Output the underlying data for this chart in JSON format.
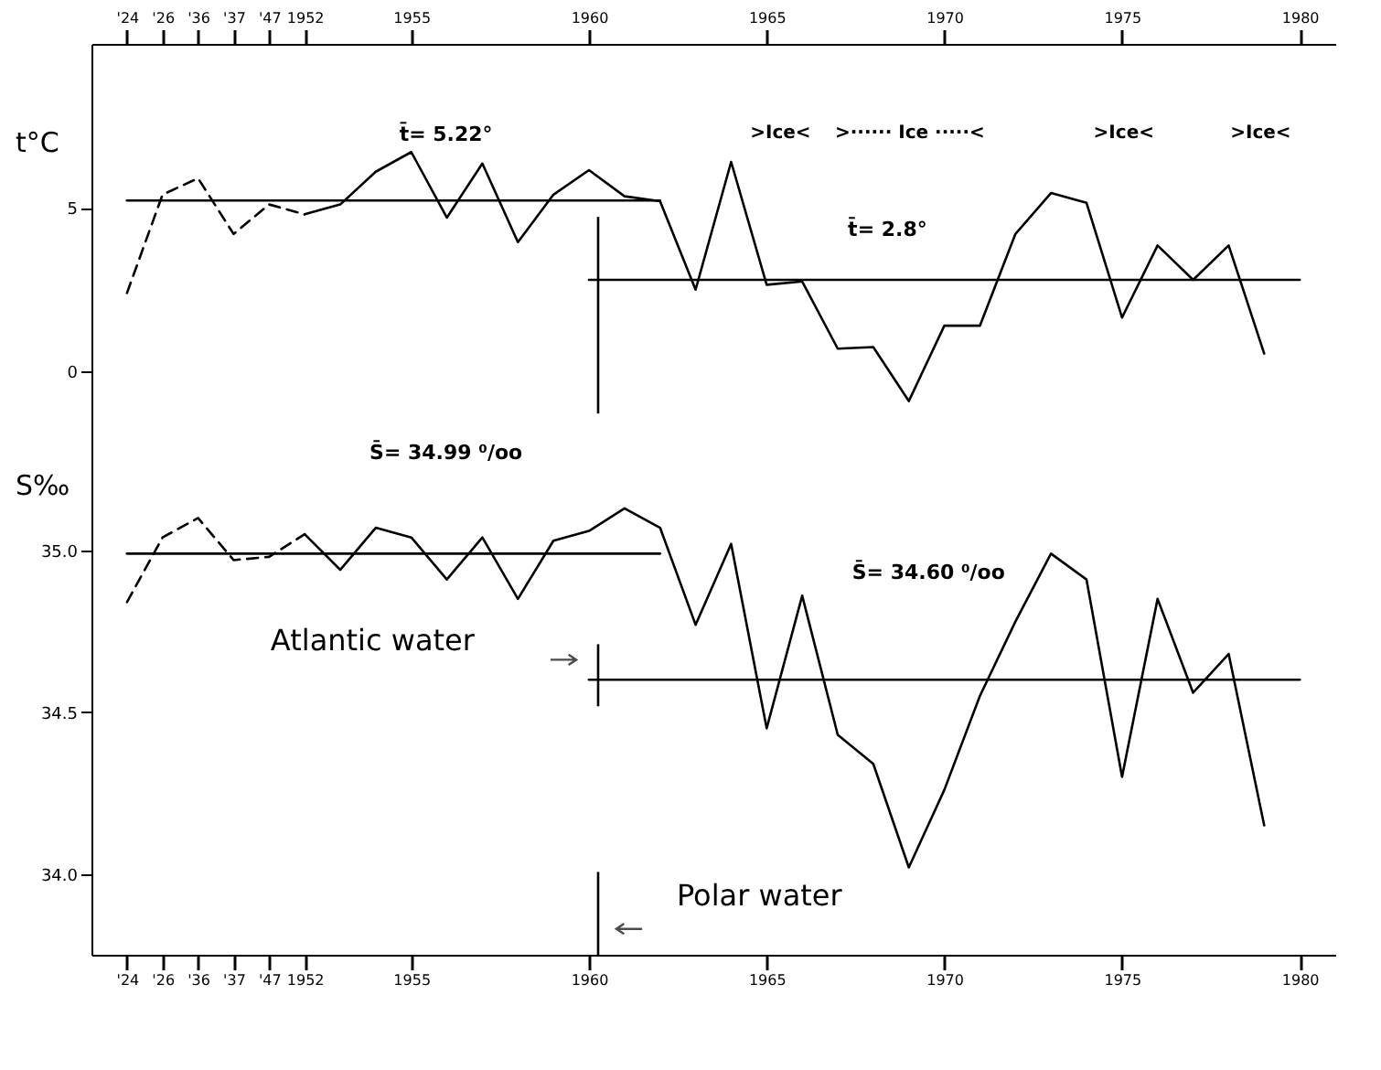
{
  "chart_data": [
    {
      "type": "line",
      "ylabel": "t°C",
      "categories": [
        "'24",
        "'26",
        "'36",
        "'37",
        "'47",
        "1952",
        null,
        null,
        "1955",
        null,
        null,
        null,
        null,
        "1960",
        null,
        null,
        null,
        null,
        "1965",
        null,
        null,
        null,
        null,
        "1970",
        null,
        null,
        null,
        null,
        "1975",
        null,
        null,
        null,
        null,
        "1980"
      ],
      "ylim": [
        -2,
        10
      ],
      "yticks": [
        0,
        5
      ],
      "grid": false,
      "marker": "none",
      "series": [
        {
          "color": "#000000",
          "line_style": "dashed",
          "values": [
            2.4,
            5.4,
            5.9,
            4.2,
            5.1,
            4.8,
            null,
            null,
            null,
            null,
            null,
            null,
            null,
            null,
            null,
            null,
            null,
            null,
            null,
            null,
            null,
            null,
            null,
            null,
            null,
            null,
            null,
            null,
            null,
            null,
            null,
            null,
            null,
            null
          ]
        },
        {
          "color": "#000000",
          "line_style": "solid",
          "values": [
            null,
            null,
            null,
            null,
            null,
            4.8,
            5.1,
            6.1,
            6.7,
            4.7,
            6.35,
            3.95,
            5.4,
            6.15,
            5.35,
            5.2,
            2.5,
            6.4,
            2.65,
            2.75,
            0.7,
            0.75,
            -0.9,
            1.4,
            1.4,
            4.2,
            5.45,
            5.15,
            1.65,
            3.85,
            2.8,
            3.85,
            0.55,
            null
          ]
        },
        {
          "color": "#000000",
          "line_style": "solid",
          "values": [
            5.22,
            5.22,
            5.22,
            5.22,
            5.22,
            5.22,
            5.22,
            5.22,
            5.22,
            5.22,
            5.22,
            5.22,
            5.22,
            5.22,
            5.22,
            5.22,
            null,
            null,
            null,
            null,
            null,
            null,
            null,
            null,
            null,
            null,
            null,
            null,
            null,
            null,
            null,
            null,
            null,
            null
          ]
        },
        {
          "color": "#000000",
          "line_style": "solid",
          "values": [
            null,
            null,
            null,
            null,
            null,
            null,
            null,
            null,
            null,
            null,
            null,
            null,
            null,
            2.8,
            2.8,
            2.8,
            2.8,
            2.8,
            2.8,
            2.8,
            2.8,
            2.8,
            2.8,
            2.8,
            2.8,
            2.8,
            2.8,
            2.8,
            2.8,
            2.8,
            2.8,
            2.8,
            2.8,
            2.8
          ]
        }
      ],
      "ref_lines": [
        {
          "axis": "x",
          "value": "1960"
        }
      ],
      "annotations": [
        "t̄= 5.22°",
        "t̄= 2.8°",
        ">Ice<",
        ">······ Ice ·····<",
        ">Ice<",
        ">Ice<"
      ]
    },
    {
      "type": "line",
      "ylabel": "S‰",
      "categories": [
        "'24",
        "'26",
        "'36",
        "'37",
        "'47",
        "1952",
        null,
        null,
        "1955",
        null,
        null,
        null,
        null,
        "1960",
        null,
        null,
        null,
        null,
        "1965",
        null,
        null,
        null,
        null,
        "1970",
        null,
        null,
        null,
        null,
        "1975",
        null,
        null,
        null,
        null,
        "1980"
      ],
      "ylim": [
        33.75,
        35.35
      ],
      "yticks": [
        {
          "value": 34,
          "label": "34.0"
        },
        {
          "value": 34.5,
          "label": "34.5"
        },
        {
          "value": 35,
          "label": "35.0"
        }
      ],
      "grid": false,
      "marker": "none",
      "series": [
        {
          "color": "#000000",
          "line_style": "dashed",
          "values": [
            34.84,
            35.04,
            35.1,
            34.97,
            34.98,
            35.05,
            null,
            null,
            null,
            null,
            null,
            null,
            null,
            null,
            null,
            null,
            null,
            null,
            null,
            null,
            null,
            null,
            null,
            null,
            null,
            null,
            null,
            null,
            null,
            null,
            null,
            null,
            null,
            null
          ]
        },
        {
          "color": "#000000",
          "line_style": "solid",
          "values": [
            null,
            null,
            null,
            null,
            null,
            35.05,
            34.94,
            35.07,
            35.04,
            34.91,
            35.04,
            34.85,
            35.03,
            35.06,
            35.13,
            35.07,
            34.77,
            35.02,
            34.45,
            34.86,
            34.43,
            34.34,
            34.02,
            34.26,
            34.55,
            34.78,
            34.99,
            34.91,
            34.3,
            34.85,
            34.56,
            34.68,
            34.15,
            null
          ]
        },
        {
          "color": "#000000",
          "line_style": "solid",
          "values": [
            34.99,
            34.99,
            34.99,
            34.99,
            34.99,
            34.99,
            34.99,
            34.99,
            34.99,
            34.99,
            34.99,
            34.99,
            34.99,
            34.99,
            34.99,
            34.99,
            null,
            null,
            null,
            null,
            null,
            null,
            null,
            null,
            null,
            null,
            null,
            null,
            null,
            null,
            null,
            null,
            null,
            null
          ]
        },
        {
          "color": "#000000",
          "line_style": "solid",
          "values": [
            null,
            null,
            null,
            null,
            null,
            null,
            null,
            null,
            null,
            null,
            null,
            null,
            null,
            34.6,
            34.6,
            34.6,
            34.6,
            34.6,
            34.6,
            34.6,
            34.6,
            34.6,
            34.6,
            34.6,
            34.6,
            34.6,
            34.6,
            34.6,
            34.6,
            34.6,
            34.6,
            34.6,
            34.6,
            34.6
          ]
        }
      ],
      "ref_lines": [
        {
          "axis": "x",
          "value": "1960"
        }
      ],
      "annotations": [
        "Atlantic water",
        "Polar water",
        "S̄= 34.99 ⁰/oo",
        "S̄= 34.60 ⁰/oo"
      ]
    }
  ]
}
